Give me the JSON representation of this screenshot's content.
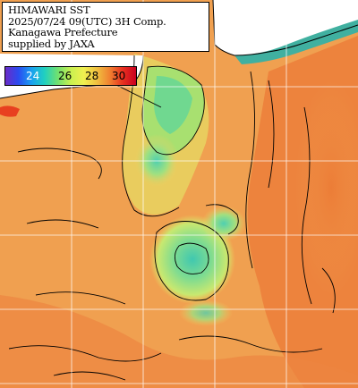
{
  "title": {
    "line1": "HIMAWARI SST",
    "line2": "2025/07/24 09(UTC) 3H Comp.",
    "line3": "Kanagawa Prefecture",
    "line4": "supplied by JAXA"
  },
  "legend": {
    "labels": [
      "24",
      "26",
      "28",
      "30"
    ],
    "label_colors": [
      "#ffffff",
      "#000000",
      "#000000",
      "#000000"
    ],
    "gradient_colors": [
      "#6a2cc8",
      "#2a4cf0",
      "#1aa0f0",
      "#20d0c0",
      "#70e070",
      "#c8f050",
      "#f0f050",
      "#f0c040",
      "#f08030",
      "#e83020",
      "#c80020"
    ]
  },
  "colors": {
    "ocean_warm": "#f0a050",
    "ocean_hot": "#ec7a34",
    "ocean_cool": "#a8e070",
    "ocean_cold": "#40c8b0",
    "land": "#ffffff",
    "grid": "#ffffff",
    "contour": "#000000"
  }
}
